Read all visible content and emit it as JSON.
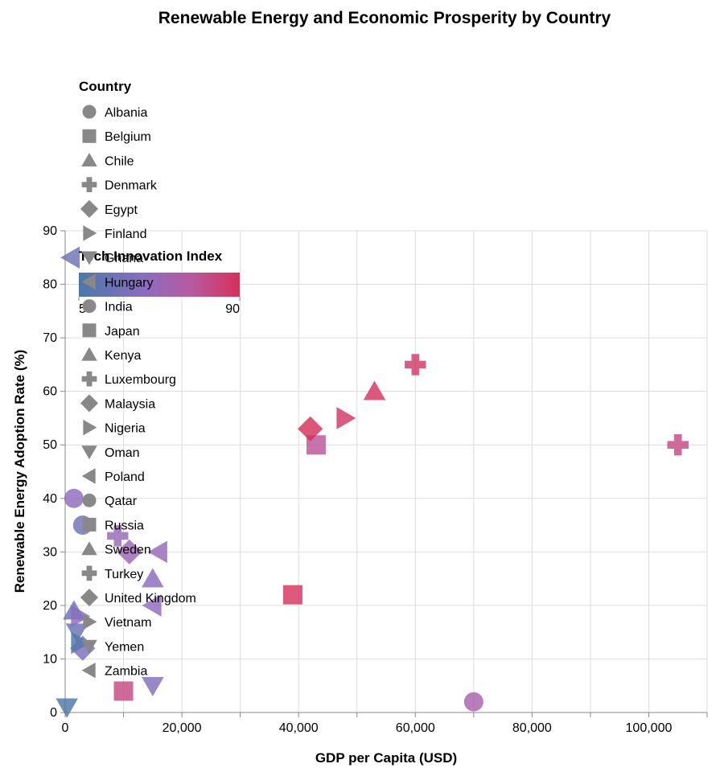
{
  "chart_data": {
    "type": "scatter",
    "title": "Renewable Energy and Economic Prosperity by Country",
    "xlabel": "GDP per Capita (USD)",
    "ylabel": "Renewable Energy Adoption Rate (%)",
    "xlim": [
      0,
      110000
    ],
    "ylim": [
      0,
      90
    ],
    "x_ticks": [
      0,
      20000,
      40000,
      60000,
      80000,
      100000
    ],
    "x_tick_labels": [
      "0",
      "20,000",
      "40,000",
      "60,000",
      "80,000",
      "100,000"
    ],
    "y_ticks": [
      0,
      10,
      20,
      30,
      40,
      50,
      60,
      70,
      80,
      90
    ],
    "y_tick_labels": [
      "0",
      "10",
      "20",
      "30",
      "40",
      "50",
      "60",
      "70",
      "80",
      "90"
    ],
    "grid": true,
    "shape_legend": {
      "title": "Country",
      "items": [
        {
          "label": "Albania",
          "shape": "circle"
        },
        {
          "label": "Belgium",
          "shape": "square"
        },
        {
          "label": "Chile",
          "shape": "triangle-up"
        },
        {
          "label": "Denmark",
          "shape": "cross"
        },
        {
          "label": "Egypt",
          "shape": "diamond"
        },
        {
          "label": "Finland",
          "shape": "triangle-right"
        },
        {
          "label": "Ghana",
          "shape": "triangle-down"
        },
        {
          "label": "Hungary",
          "shape": "triangle-left"
        },
        {
          "label": "India",
          "shape": "circle"
        },
        {
          "label": "Japan",
          "shape": "square"
        },
        {
          "label": "Kenya",
          "shape": "triangle-up"
        },
        {
          "label": "Luxembourg",
          "shape": "cross"
        },
        {
          "label": "Malaysia",
          "shape": "diamond"
        },
        {
          "label": "Nigeria",
          "shape": "triangle-right"
        },
        {
          "label": "Oman",
          "shape": "triangle-down"
        },
        {
          "label": "Poland",
          "shape": "triangle-left"
        },
        {
          "label": "Qatar",
          "shape": "circle"
        },
        {
          "label": "Russia",
          "shape": "square"
        },
        {
          "label": "Sweden",
          "shape": "triangle-up"
        },
        {
          "label": "Turkey",
          "shape": "cross"
        },
        {
          "label": "United Kingdom",
          "shape": "diamond"
        },
        {
          "label": "Vietnam",
          "shape": "triangle-right"
        },
        {
          "label": "Yemen",
          "shape": "triangle-down"
        },
        {
          "label": "Zambia",
          "shape": "triangle-left"
        }
      ]
    },
    "color_legend": {
      "title": "Tech Innovation Index",
      "min_label": "5",
      "max_label": "90",
      "min": 5,
      "max": 90,
      "colors": [
        "#4c78a8",
        "#8a6dbf",
        "#b85aa0",
        "#d6305a"
      ]
    },
    "points": [
      {
        "country": "Albania",
        "x": 1500,
        "y": 40,
        "innovation": 42
      },
      {
        "country": "Belgium",
        "x": 43000,
        "y": 50,
        "innovation": 68
      },
      {
        "country": "Chile",
        "x": 15000,
        "y": 25,
        "innovation": 38
      },
      {
        "country": "Denmark",
        "x": 60000,
        "y": 65,
        "innovation": 85
      },
      {
        "country": "Egypt",
        "x": 3000,
        "y": 12,
        "innovation": 30
      },
      {
        "country": "Finland",
        "x": 48000,
        "y": 55,
        "innovation": 86
      },
      {
        "country": "Ghana",
        "x": 2000,
        "y": 15,
        "innovation": 20
      },
      {
        "country": "Hungary",
        "x": 1000,
        "y": 85,
        "innovation": 22
      },
      {
        "country": "India",
        "x": 3000,
        "y": 35,
        "innovation": 25
      },
      {
        "country": "Japan",
        "x": 39000,
        "y": 22,
        "innovation": 88
      },
      {
        "country": "Kenya",
        "x": 1500,
        "y": 19,
        "innovation": 22
      },
      {
        "country": "Luxembourg",
        "x": 105000,
        "y": 50,
        "innovation": 75
      },
      {
        "country": "Malaysia",
        "x": 11000,
        "y": 30,
        "innovation": 50
      },
      {
        "country": "Nigeria",
        "x": 2500,
        "y": 18,
        "innovation": 38
      },
      {
        "country": "Oman",
        "x": 15000,
        "y": 5,
        "innovation": 35
      },
      {
        "country": "Poland",
        "x": 16000,
        "y": 30,
        "innovation": 45
      },
      {
        "country": "Qatar",
        "x": 70000,
        "y": 2,
        "innovation": 55
      },
      {
        "country": "Russia",
        "x": 10000,
        "y": 4,
        "innovation": 75
      },
      {
        "country": "Sweden",
        "x": 53000,
        "y": 60,
        "innovation": 88
      },
      {
        "country": "Turkey",
        "x": 9000,
        "y": 33,
        "innovation": 45
      },
      {
        "country": "United Kingdom",
        "x": 42000,
        "y": 53,
        "innovation": 90
      },
      {
        "country": "Vietnam",
        "x": 2500,
        "y": 13,
        "innovation": 8
      },
      {
        "country": "Yemen",
        "x": 300,
        "y": 1,
        "innovation": 5
      },
      {
        "country": "Zambia",
        "x": 15000,
        "y": 20,
        "innovation": 40
      }
    ]
  }
}
